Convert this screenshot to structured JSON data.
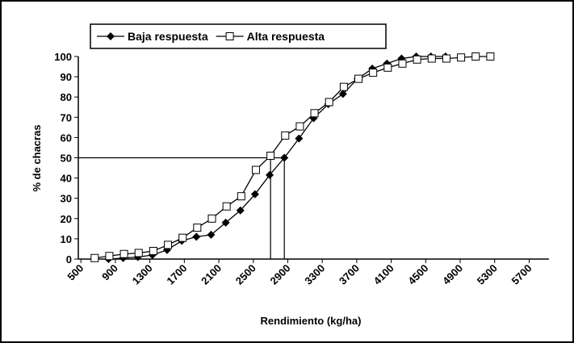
{
  "chart_data": {
    "type": "line",
    "xlabel": "Rendimiento (kg/ha)",
    "ylabel": "% de chacras",
    "xlim": [
      470,
      5930
    ],
    "xticks": [
      500,
      900,
      1300,
      1700,
      2100,
      2500,
      2900,
      3300,
      3700,
      4100,
      4500,
      4900,
      5300,
      5700
    ],
    "ylim": [
      0,
      100
    ],
    "yticks": [
      0,
      10,
      20,
      30,
      40,
      50,
      60,
      70,
      80,
      90,
      100
    ],
    "reference_y": 50,
    "reference_x": [
      2700,
      2860
    ],
    "legend": "top-left",
    "series": [
      {
        "name": "Baja respuesta",
        "color": "#000000",
        "marker": "diamond",
        "x": [
          820,
          990,
          1160,
          1330,
          1500,
          1670,
          1840,
          2010,
          2180,
          2350,
          2520,
          2690,
          2860,
          3030,
          3200,
          3370,
          3540,
          3710,
          3880,
          4050,
          4220,
          4390,
          4560,
          4730
        ],
        "values": [
          0,
          0.5,
          1,
          2,
          4.5,
          9,
          11,
          12,
          18,
          24,
          32,
          41.5,
          50,
          59.5,
          69.5,
          76.5,
          81.5,
          89,
          94,
          96.5,
          99,
          100,
          100,
          100
        ]
      },
      {
        "name": "Alta respuesta",
        "color": "#000000",
        "marker": "square",
        "x": [
          660,
          830,
          1000,
          1170,
          1340,
          1510,
          1680,
          1850,
          2020,
          2190,
          2360,
          2530,
          2700,
          2870,
          3040,
          3210,
          3380,
          3550,
          3720,
          3890,
          4060,
          4230,
          4400,
          4570,
          4740,
          4910,
          5080,
          5250
        ],
        "values": [
          0.5,
          1.5,
          2.5,
          3,
          4,
          7,
          10.5,
          15.5,
          20,
          26,
          31,
          44,
          51,
          61,
          65.5,
          72,
          77.5,
          85,
          89,
          92,
          94.5,
          96.5,
          98.5,
          99,
          99,
          99.5,
          100,
          100
        ]
      }
    ]
  }
}
